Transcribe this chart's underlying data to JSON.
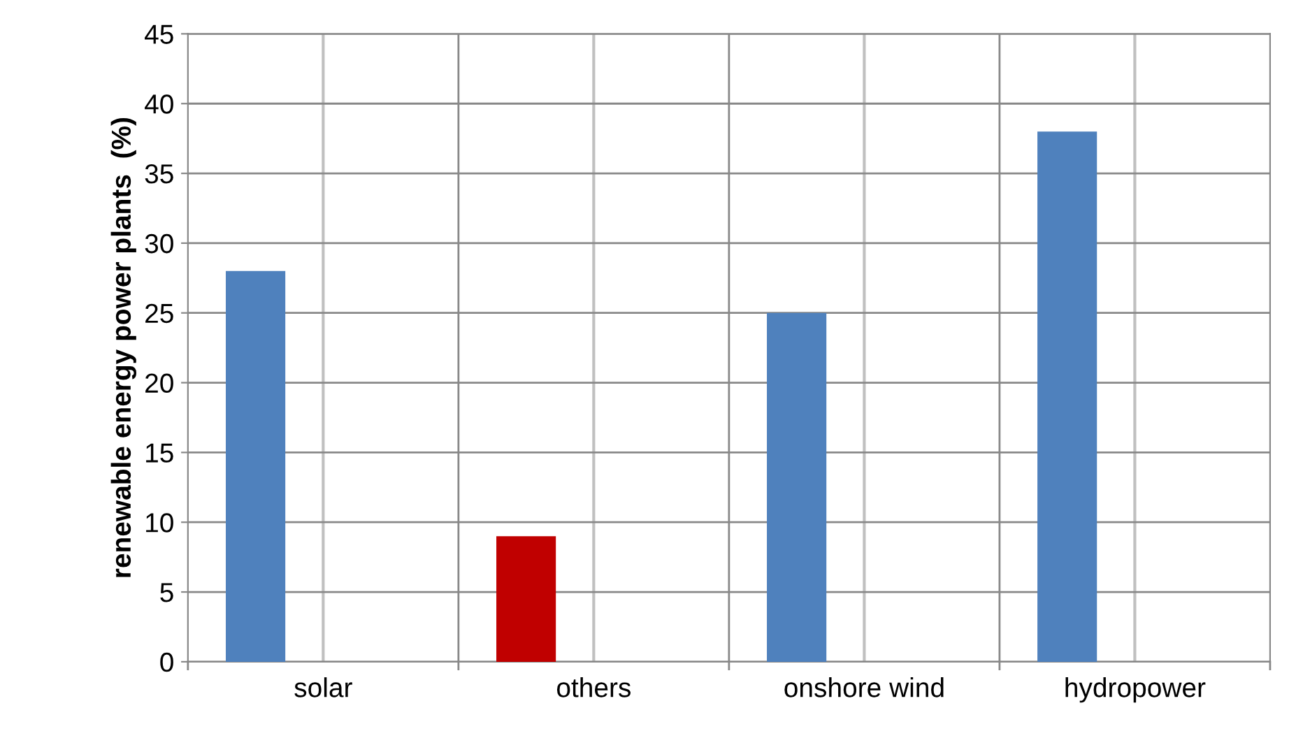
{
  "chart_data": {
    "type": "bar",
    "ylabel": "renewable energy power plants  (%)",
    "categories": [
      "solar",
      "others",
      "onshore wind",
      "hydropower"
    ],
    "values": [
      28,
      9,
      25,
      38
    ],
    "colors": [
      "#4f81bd",
      "#c00000",
      "#4f81bd",
      "#4f81bd"
    ],
    "ylim": [
      0,
      45
    ],
    "yticks": [
      0,
      5,
      10,
      15,
      20,
      25,
      30,
      35,
      40,
      45
    ],
    "grid": true
  }
}
